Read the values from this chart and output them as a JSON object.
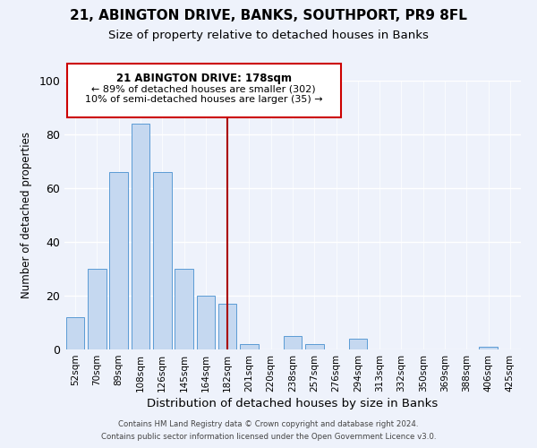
{
  "title": "21, ABINGTON DRIVE, BANKS, SOUTHPORT, PR9 8FL",
  "subtitle": "Size of property relative to detached houses in Banks",
  "xlabel": "Distribution of detached houses by size in Banks",
  "ylabel": "Number of detached properties",
  "categories": [
    "52sqm",
    "70sqm",
    "89sqm",
    "108sqm",
    "126sqm",
    "145sqm",
    "164sqm",
    "182sqm",
    "201sqm",
    "220sqm",
    "238sqm",
    "257sqm",
    "276sqm",
    "294sqm",
    "313sqm",
    "332sqm",
    "350sqm",
    "369sqm",
    "388sqm",
    "406sqm",
    "425sqm"
  ],
  "values": [
    12,
    30,
    66,
    84,
    66,
    30,
    20,
    17,
    2,
    0,
    5,
    2,
    0,
    4,
    0,
    0,
    0,
    0,
    0,
    1,
    0
  ],
  "bar_color": "#c5d8f0",
  "bar_edge_color": "#5b9bd5",
  "vline_x_index": 7,
  "vline_color": "#aa0000",
  "annotation_title": "21 ABINGTON DRIVE: 178sqm",
  "annotation_line1": "← 89% of detached houses are smaller (302)",
  "annotation_line2": "10% of semi-detached houses are larger (35) →",
  "annotation_box_edge_color": "#cc0000",
  "ylim": [
    0,
    100
  ],
  "yticks": [
    0,
    20,
    40,
    60,
    80,
    100
  ],
  "footnote1": "Contains HM Land Registry data © Crown copyright and database right 2024.",
  "footnote2": "Contains public sector information licensed under the Open Government Licence v3.0.",
  "background_color": "#eef2fb",
  "title_fontsize": 11,
  "subtitle_fontsize": 9.5
}
